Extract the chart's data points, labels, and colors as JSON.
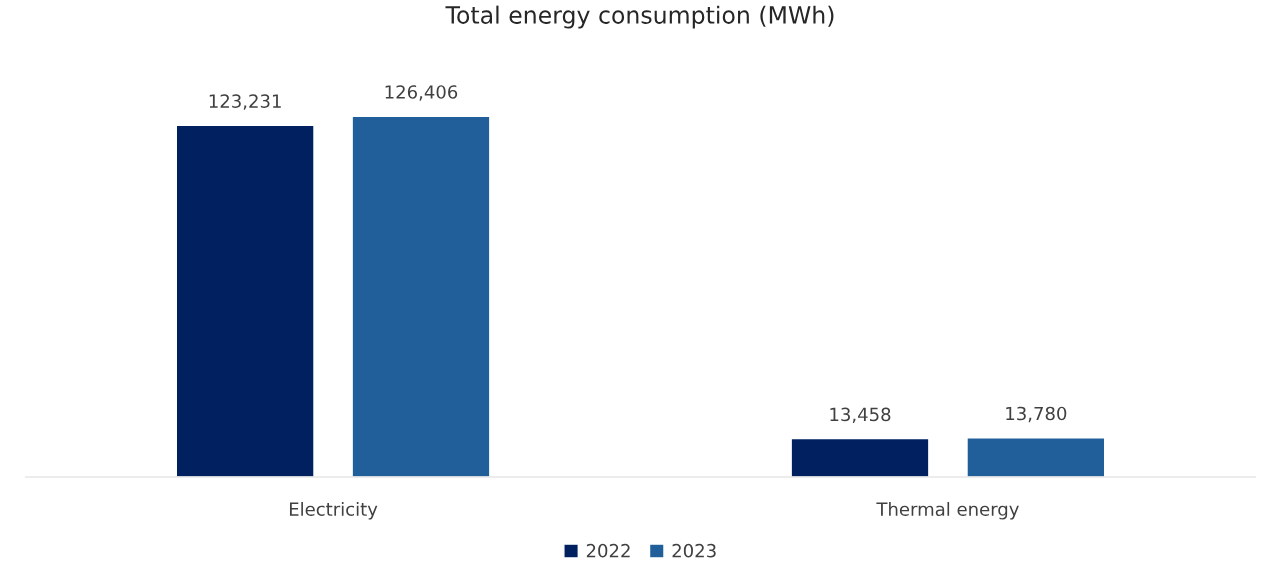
{
  "chart_data": {
    "type": "bar",
    "title": "Total energy consumption (MWh)",
    "categories": [
      "Electricity",
      "Thermal energy"
    ],
    "series": [
      {
        "name": "2022",
        "color": "#002060",
        "values": [
          123231,
          13458
        ],
        "value_labels": [
          "123,231",
          "13,458"
        ]
      },
      {
        "name": "2023",
        "color": "#215f9a",
        "values": [
          126406,
          13780
        ],
        "value_labels": [
          "126,406",
          "13,780"
        ]
      }
    ],
    "legend": "bottom"
  }
}
